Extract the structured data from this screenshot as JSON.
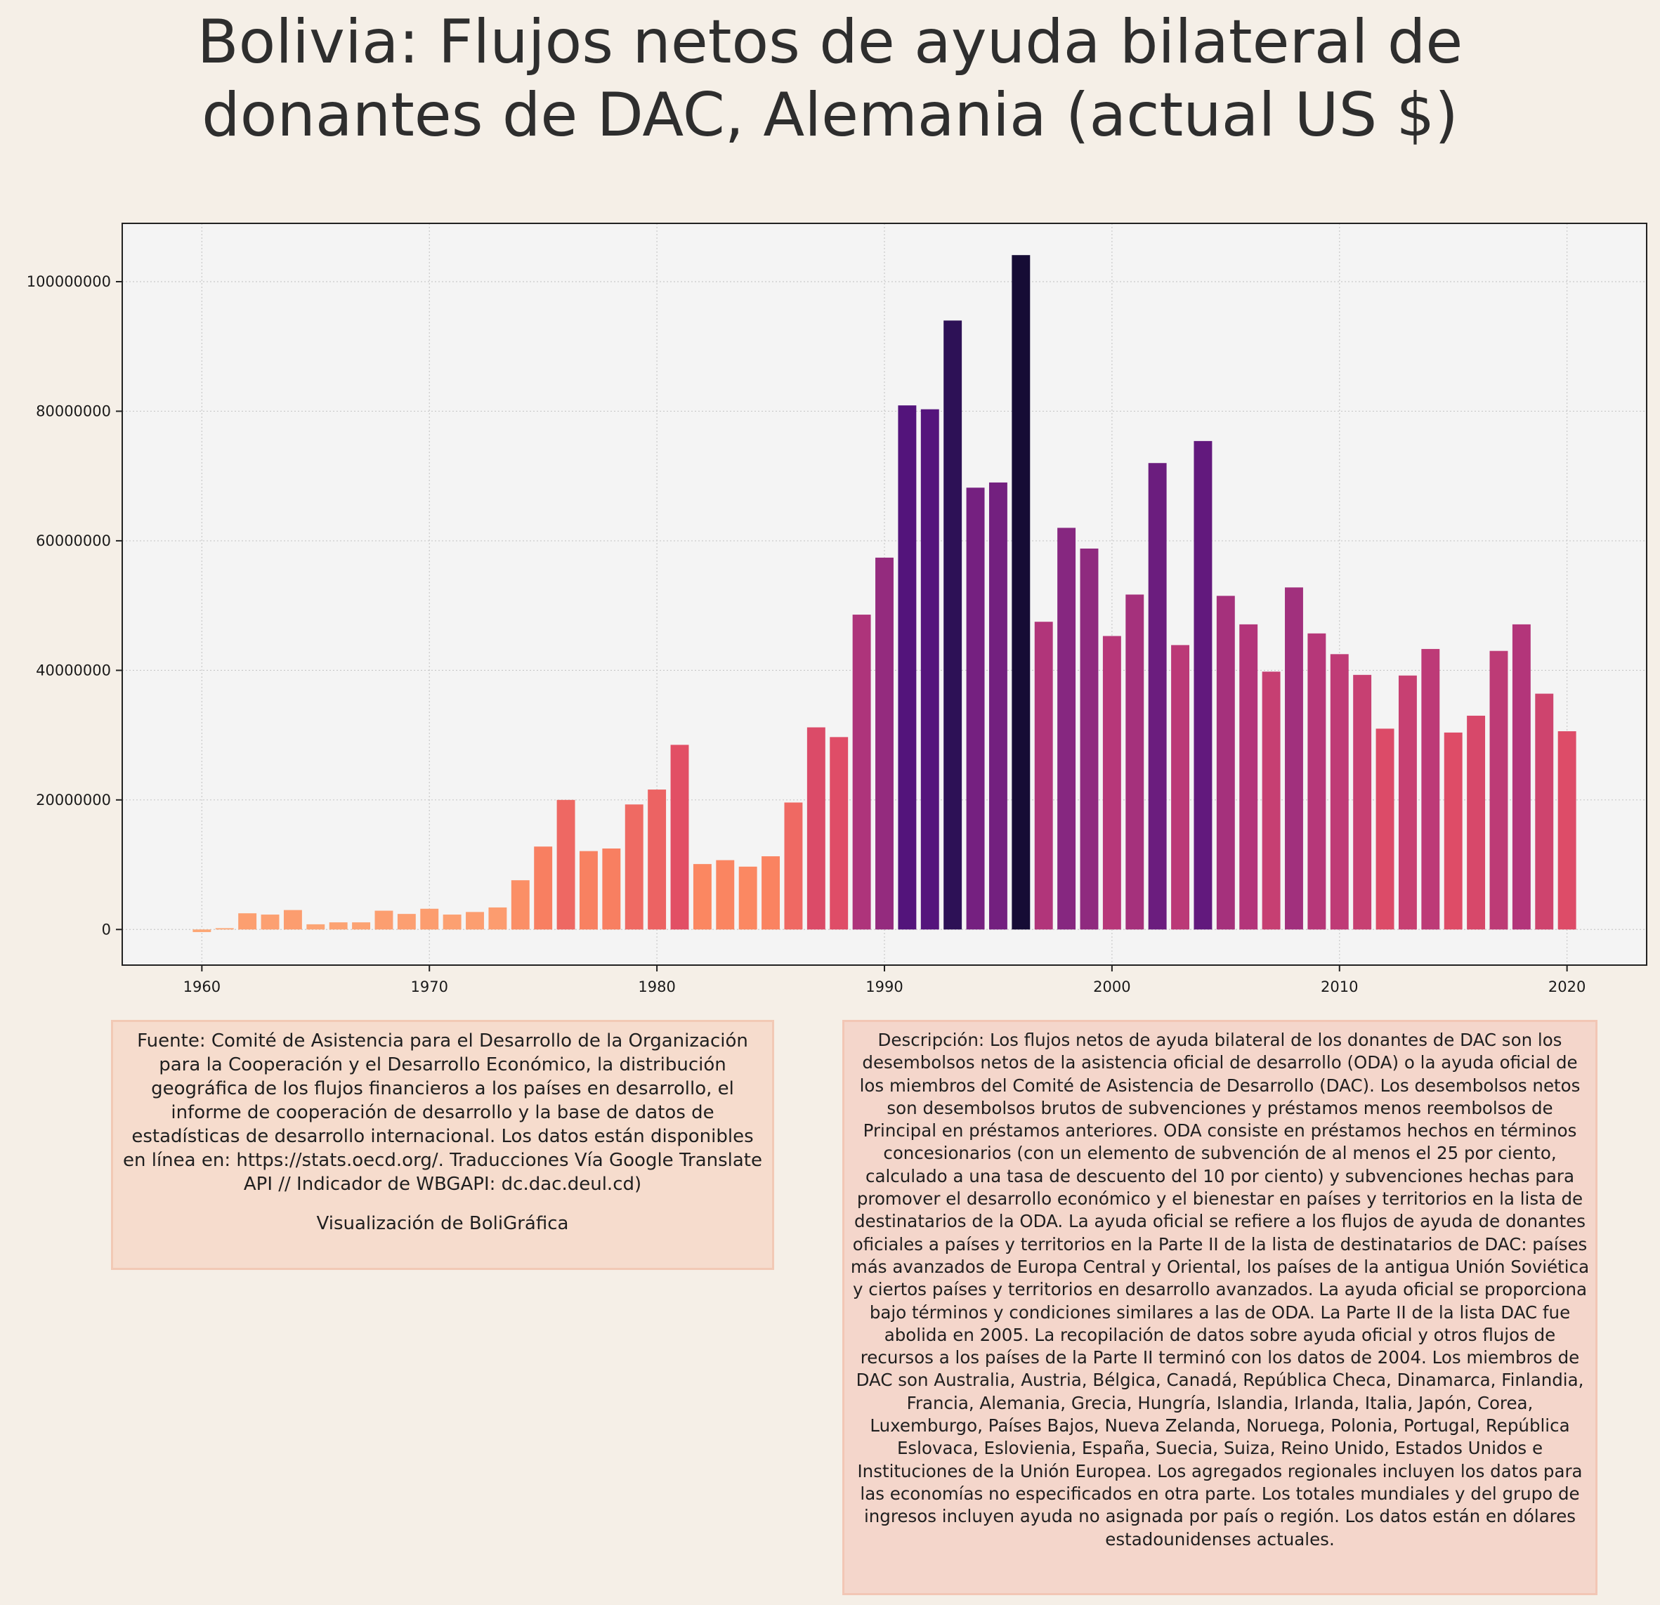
{
  "title_lines": [
    "Bolivia:  Flujos netos de ayuda bilateral de",
    "donantes de DAC, Alemania (actual US $)"
  ],
  "colors": {
    "background": "#f5efe7",
    "plot_background": "#f4f4f4",
    "palette": "magma (by value)"
  },
  "chart_data": {
    "type": "bar",
    "x": [
      1960,
      1961,
      1962,
      1963,
      1964,
      1965,
      1966,
      1967,
      1968,
      1969,
      1970,
      1971,
      1972,
      1973,
      1974,
      1975,
      1976,
      1977,
      1978,
      1979,
      1980,
      1981,
      1982,
      1983,
      1984,
      1985,
      1986,
      1987,
      1988,
      1989,
      1990,
      1991,
      1992,
      1993,
      1994,
      1995,
      1996,
      1997,
      1998,
      1999,
      2000,
      2001,
      2002,
      2003,
      2004,
      2005,
      2006,
      2007,
      2008,
      2009,
      2010,
      2011,
      2012,
      2013,
      2014,
      2015,
      2016,
      2017,
      2018,
      2019,
      2020
    ],
    "values": [
      -400000,
      200000,
      2500000,
      2300000,
      3000000,
      800000,
      1100000,
      1100000,
      2900000,
      2400000,
      3200000,
      2300000,
      2700000,
      3400000,
      7600000,
      12800000,
      20000000,
      12100000,
      12500000,
      19300000,
      21600000,
      28500000,
      10100000,
      10700000,
      9700000,
      11300000,
      19600000,
      31200000,
      29700000,
      48600000,
      57400000,
      80900000,
      80300000,
      94000000,
      68200000,
      69000000,
      104100000,
      47500000,
      62000000,
      58800000,
      45300000,
      51700000,
      72000000,
      43900000,
      75400000,
      51500000,
      47100000,
      39800000,
      52800000,
      45700000,
      42500000,
      39300000,
      31000000,
      39200000,
      43300000,
      30400000,
      33000000,
      43000000,
      47100000,
      36400000,
      30600000
    ],
    "xlim": [
      1956.5,
      2023.5
    ],
    "ylim": [
      -5500000,
      109000000
    ],
    "xticks": [
      1960,
      1970,
      1980,
      1990,
      2000,
      2010,
      2020
    ],
    "yticks": [
      0,
      20000000,
      40000000,
      60000000,
      80000000,
      100000000
    ],
    "ytick_labels": [
      "0",
      "20000000",
      "40000000",
      "60000000",
      "80000000",
      "100000000"
    ],
    "grid": true,
    "xlabel": "",
    "ylabel": ""
  },
  "source_note": {
    "text": "Fuente: Comité de Asistencia para el Desarrollo de la Organización para la Cooperación y el Desarrollo Económico, la distribución geográfica de los flujos financieros a los países en desarrollo, el informe de cooperación de desarrollo y la base de datos de estadísticas de desarrollo internacional. Los datos están disponibles en línea en: https://stats.oecd.org/. Traducciones Vía Google Translate API // Indicador de WBGAPI: dc.dac.deul.cd)",
    "credit": "Visualización de BoliGráfica"
  },
  "description_note": {
    "text": "Descripción: Los flujos netos de ayuda bilateral de los donantes de DAC son los desembolsos netos de la asistencia oficial de desarrollo (ODA) o la ayuda oficial de los miembros del Comité de Asistencia de Desarrollo (DAC). Los desembolsos netos son desembolsos brutos de subvenciones y préstamos menos reembolsos de Principal en préstamos anteriores. ODA consiste en préstamos hechos en términos concesionarios (con un elemento de subvención de al menos el 25 por ciento, calculado a una tasa de descuento del 10 por ciento) y subvenciones hechas para promover el desarrollo económico y el bienestar en países y territorios en la lista de destinatarios de la ODA. La ayuda oficial se refiere a los flujos de ayuda de donantes oficiales a países y territorios en la Parte II de la lista de destinatarios de DAC: países más avanzados de Europa Central y Oriental, los países de la antigua Unión Soviética y ciertos países y territorios en desarrollo avanzados. La ayuda oficial se proporciona bajo términos y condiciones similares a las de ODA. La Parte II de la lista DAC fue abolida en 2005. La recopilación de datos sobre ayuda oficial y otros flujos de recursos a los países de la Parte II terminó con los datos de 2004. Los miembros de DAC son Australia, Austria, Bélgica, Canadá, República Checa, Dinamarca, Finlandia, Francia, Alemania, Grecia, Hungría, Islandia, Irlanda, Italia, Japón, Corea, Luxemburgo, Países Bajos, Nueva Zelanda, Noruega, Polonia, Portugal, República Eslovaca, Eslovienia, España, Suecia, Suiza, Reino Unido, Estados Unidos e Instituciones de la Unión Europea. Los agregados regionales incluyen los datos para las economías no especificados en otra parte. Los totales mundiales y del grupo de ingresos incluyen ayuda no asignada por país o región. Los datos están en dólares estadounidenses actuales."
  }
}
